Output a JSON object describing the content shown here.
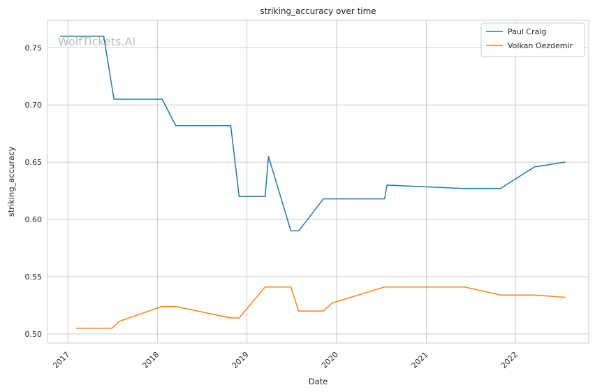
{
  "chart_data": {
    "type": "line",
    "title": "striking_accuracy over time",
    "xlabel": "Date",
    "ylabel": "striking_accuracy",
    "watermark": "WolfTickets.AI",
    "xlim": [
      "2016-10-10",
      "2022-10-25"
    ],
    "ylim": [
      0.492,
      0.774
    ],
    "x_ticks": [
      {
        "date": "2017-01-01",
        "label": "2017"
      },
      {
        "date": "2018-01-01",
        "label": "2018"
      },
      {
        "date": "2019-01-01",
        "label": "2019"
      },
      {
        "date": "2020-01-01",
        "label": "2020"
      },
      {
        "date": "2021-01-01",
        "label": "2021"
      },
      {
        "date": "2022-01-01",
        "label": "2022"
      }
    ],
    "y_ticks": [
      {
        "value": 0.5,
        "label": "0.50"
      },
      {
        "value": 0.55,
        "label": "0.55"
      },
      {
        "value": 0.6,
        "label": "0.60"
      },
      {
        "value": 0.65,
        "label": "0.65"
      },
      {
        "value": 0.7,
        "label": "0.70"
      },
      {
        "value": 0.75,
        "label": "0.75"
      }
    ],
    "grid": true,
    "legend_position": "top-right",
    "series": [
      {
        "name": "Paul Craig",
        "color": "#1f77b4",
        "points": [
          [
            "2016-12-03",
            0.76
          ],
          [
            "2017-05-27",
            0.76
          ],
          [
            "2017-07-08",
            0.705
          ],
          [
            "2018-01-20",
            0.705
          ],
          [
            "2018-03-17",
            0.682
          ],
          [
            "2018-10-27",
            0.682
          ],
          [
            "2018-11-30",
            0.62
          ],
          [
            "2019-03-16",
            0.62
          ],
          [
            "2019-03-30",
            0.655
          ],
          [
            "2019-06-29",
            0.59
          ],
          [
            "2019-07-31",
            0.59
          ],
          [
            "2019-11-09",
            0.618
          ],
          [
            "2020-07-15",
            0.618
          ],
          [
            "2020-07-25",
            0.63
          ],
          [
            "2021-06-05",
            0.627
          ],
          [
            "2021-10-30",
            0.627
          ],
          [
            "2022-03-19",
            0.646
          ],
          [
            "2022-07-20",
            0.65
          ]
        ]
      },
      {
        "name": "Volkan Oezdemir",
        "color": "#ff7f0e",
        "points": [
          [
            "2017-02-04",
            0.505
          ],
          [
            "2017-07-01",
            0.505
          ],
          [
            "2017-07-29",
            0.511
          ],
          [
            "2018-01-20",
            0.524
          ],
          [
            "2018-03-17",
            0.524
          ],
          [
            "2018-10-27",
            0.514
          ],
          [
            "2018-11-30",
            0.514
          ],
          [
            "2019-03-16",
            0.541
          ],
          [
            "2019-06-29",
            0.541
          ],
          [
            "2019-07-31",
            0.52
          ],
          [
            "2019-11-09",
            0.52
          ],
          [
            "2019-12-14",
            0.527
          ],
          [
            "2020-07-15",
            0.541
          ],
          [
            "2021-06-05",
            0.541
          ],
          [
            "2021-10-30",
            0.534
          ],
          [
            "2022-03-19",
            0.534
          ],
          [
            "2022-07-20",
            0.532
          ]
        ]
      }
    ]
  }
}
